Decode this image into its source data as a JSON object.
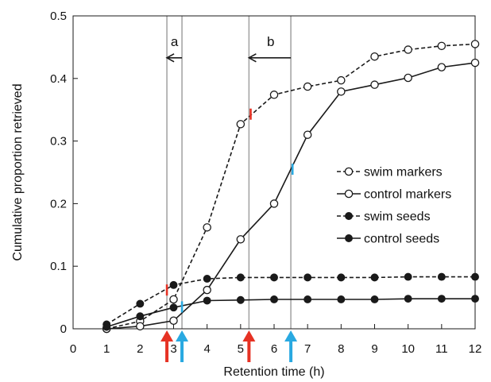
{
  "chart_data": {
    "type": "line",
    "xlabel": "Retention time (h)",
    "ylabel": "Cumulative proportion retrieved",
    "xlim": [
      0,
      12
    ],
    "ylim": [
      0,
      0.5
    ],
    "xticks": [
      "0",
      "1",
      "2",
      "3",
      "4",
      "5",
      "6",
      "7",
      "8",
      "9",
      "10",
      "11",
      "12"
    ],
    "yticks": [
      "0",
      "0.1",
      "0.2",
      "0.3",
      "0.4",
      "0.5"
    ],
    "grid": false,
    "legend_position": "right-middle",
    "x": [
      1,
      2,
      3,
      4,
      5,
      6,
      7,
      8,
      9,
      10,
      11,
      12
    ],
    "series": [
      {
        "name": "swim markers",
        "line_style": "dashed",
        "marker": "open-circle",
        "x": [
          1,
          2,
          3,
          4,
          5,
          6,
          7,
          8,
          9,
          10,
          11,
          12
        ],
        "values": [
          0.0,
          0.012,
          0.047,
          0.162,
          0.327,
          0.374,
          0.387,
          0.397,
          0.435,
          0.446,
          0.452,
          0.455
        ]
      },
      {
        "name": "control markers",
        "line_style": "solid",
        "marker": "open-circle",
        "x": [
          1,
          2,
          3,
          4,
          5,
          6,
          7,
          8,
          9,
          10,
          11,
          12
        ],
        "values": [
          0.0,
          0.004,
          0.013,
          0.062,
          0.143,
          0.2,
          0.31,
          0.379,
          0.39,
          0.401,
          0.418,
          0.425
        ]
      },
      {
        "name": "swim seeds",
        "line_style": "dashed",
        "marker": "filled-circle",
        "x": [
          1,
          2,
          3,
          4,
          5,
          6,
          7,
          8,
          9,
          10,
          11,
          12
        ],
        "values": [
          0.007,
          0.04,
          0.07,
          0.08,
          0.082,
          0.082,
          0.082,
          0.082,
          0.082,
          0.083,
          0.083,
          0.083
        ]
      },
      {
        "name": "control seeds",
        "line_style": "solid",
        "marker": "filled-circle",
        "x": [
          1,
          2,
          3,
          4,
          5,
          6,
          7,
          8,
          9,
          10,
          11,
          12
        ],
        "values": [
          0.003,
          0.02,
          0.034,
          0.045,
          0.046,
          0.047,
          0.047,
          0.047,
          0.047,
          0.048,
          0.048,
          0.048
        ]
      }
    ],
    "vertical_lines": [
      2.8,
      3.25,
      5.25,
      6.5
    ],
    "colored_ticks": [
      {
        "x": 2.8,
        "y": 0.062,
        "color": "#e63224"
      },
      {
        "x": 3.25,
        "y": 0.035,
        "color": "#29a9e1"
      },
      {
        "x": 5.3,
        "y": 0.343,
        "color": "#e63224"
      },
      {
        "x": 6.55,
        "y": 0.255,
        "color": "#29a9e1"
      }
    ],
    "arrows": [
      {
        "x": 2.8,
        "color": "#e63224"
      },
      {
        "x": 3.25,
        "color": "#29a9e1"
      },
      {
        "x": 5.25,
        "color": "#e63224"
      },
      {
        "x": 6.5,
        "color": "#29a9e1"
      }
    ],
    "annotations": [
      {
        "label": "a",
        "from_x": 3.25,
        "to_x": 2.8,
        "y": 0.433
      },
      {
        "label": "b",
        "from_x": 6.5,
        "to_x": 5.25,
        "y": 0.433
      }
    ],
    "colors": {
      "line": "#1a1a1a",
      "guide": "#a6a6a6",
      "red_arrow": "#e63224",
      "blue_arrow": "#29a9e1"
    }
  }
}
